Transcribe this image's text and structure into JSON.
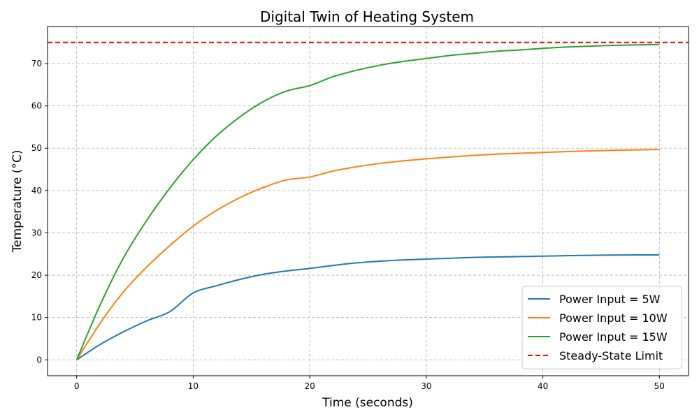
{
  "chart_data": {
    "type": "line",
    "title": "Digital Twin of Heating System",
    "xlabel": "Time (seconds)",
    "ylabel": "Temperature (°C)",
    "xlim": [
      -2.5,
      52.5
    ],
    "ylim": [
      -3.75,
      78.75
    ],
    "xticks": [
      0,
      10,
      20,
      30,
      40,
      50
    ],
    "yticks": [
      0,
      10,
      20,
      30,
      40,
      50,
      60,
      70
    ],
    "grid": true,
    "legend_position": "lower-right",
    "series": [
      {
        "name": "Power Input = 5W",
        "color": "#1f77b4",
        "style": "solid",
        "x": [
          0,
          2,
          4,
          6,
          8,
          10,
          12,
          14,
          16,
          18,
          20,
          22,
          24,
          26,
          28,
          30,
          32,
          34,
          36,
          38,
          40,
          42,
          44,
          46,
          48,
          50
        ],
        "y": [
          0,
          3.6,
          6.6,
          9.2,
          11.4,
          15.8,
          17.5,
          19.0,
          20.2,
          21.0,
          21.6,
          22.3,
          22.9,
          23.3,
          23.6,
          23.8,
          24.0,
          24.2,
          24.3,
          24.4,
          24.5,
          24.6,
          24.7,
          24.75,
          24.8,
          24.8
        ]
      },
      {
        "name": "Power Input = 10W",
        "color": "#ff7f0e",
        "style": "solid",
        "x": [
          0,
          2,
          4,
          6,
          8,
          10,
          12,
          14,
          16,
          18,
          20,
          22,
          24,
          26,
          28,
          30,
          32,
          34,
          36,
          38,
          40,
          42,
          44,
          46,
          48,
          50
        ],
        "y": [
          0,
          8.6,
          16.0,
          21.9,
          27.0,
          31.6,
          35.3,
          38.3,
          40.7,
          42.5,
          43.2,
          44.6,
          45.6,
          46.4,
          47.0,
          47.5,
          47.9,
          48.3,
          48.6,
          48.8,
          49.0,
          49.2,
          49.35,
          49.5,
          49.6,
          49.7
        ]
      },
      {
        "name": "Power Input = 15W",
        "color": "#2ca02c",
        "style": "solid",
        "x": [
          0,
          2,
          4,
          6,
          8,
          10,
          12,
          14,
          16,
          18,
          20,
          22,
          24,
          26,
          28,
          30,
          32,
          34,
          36,
          38,
          40,
          42,
          44,
          46,
          48,
          50
        ],
        "y": [
          0,
          12.9,
          24.0,
          32.9,
          40.6,
          47.3,
          52.9,
          57.4,
          61.0,
          63.5,
          64.8,
          66.9,
          68.4,
          69.6,
          70.5,
          71.2,
          71.9,
          72.4,
          72.9,
          73.2,
          73.6,
          73.9,
          74.1,
          74.3,
          74.4,
          74.5
        ]
      },
      {
        "name": "Steady-State Limit",
        "color": "#ff0000",
        "style": "dashed",
        "x": [
          -2.5,
          52.5
        ],
        "y": [
          75,
          75
        ]
      }
    ]
  }
}
